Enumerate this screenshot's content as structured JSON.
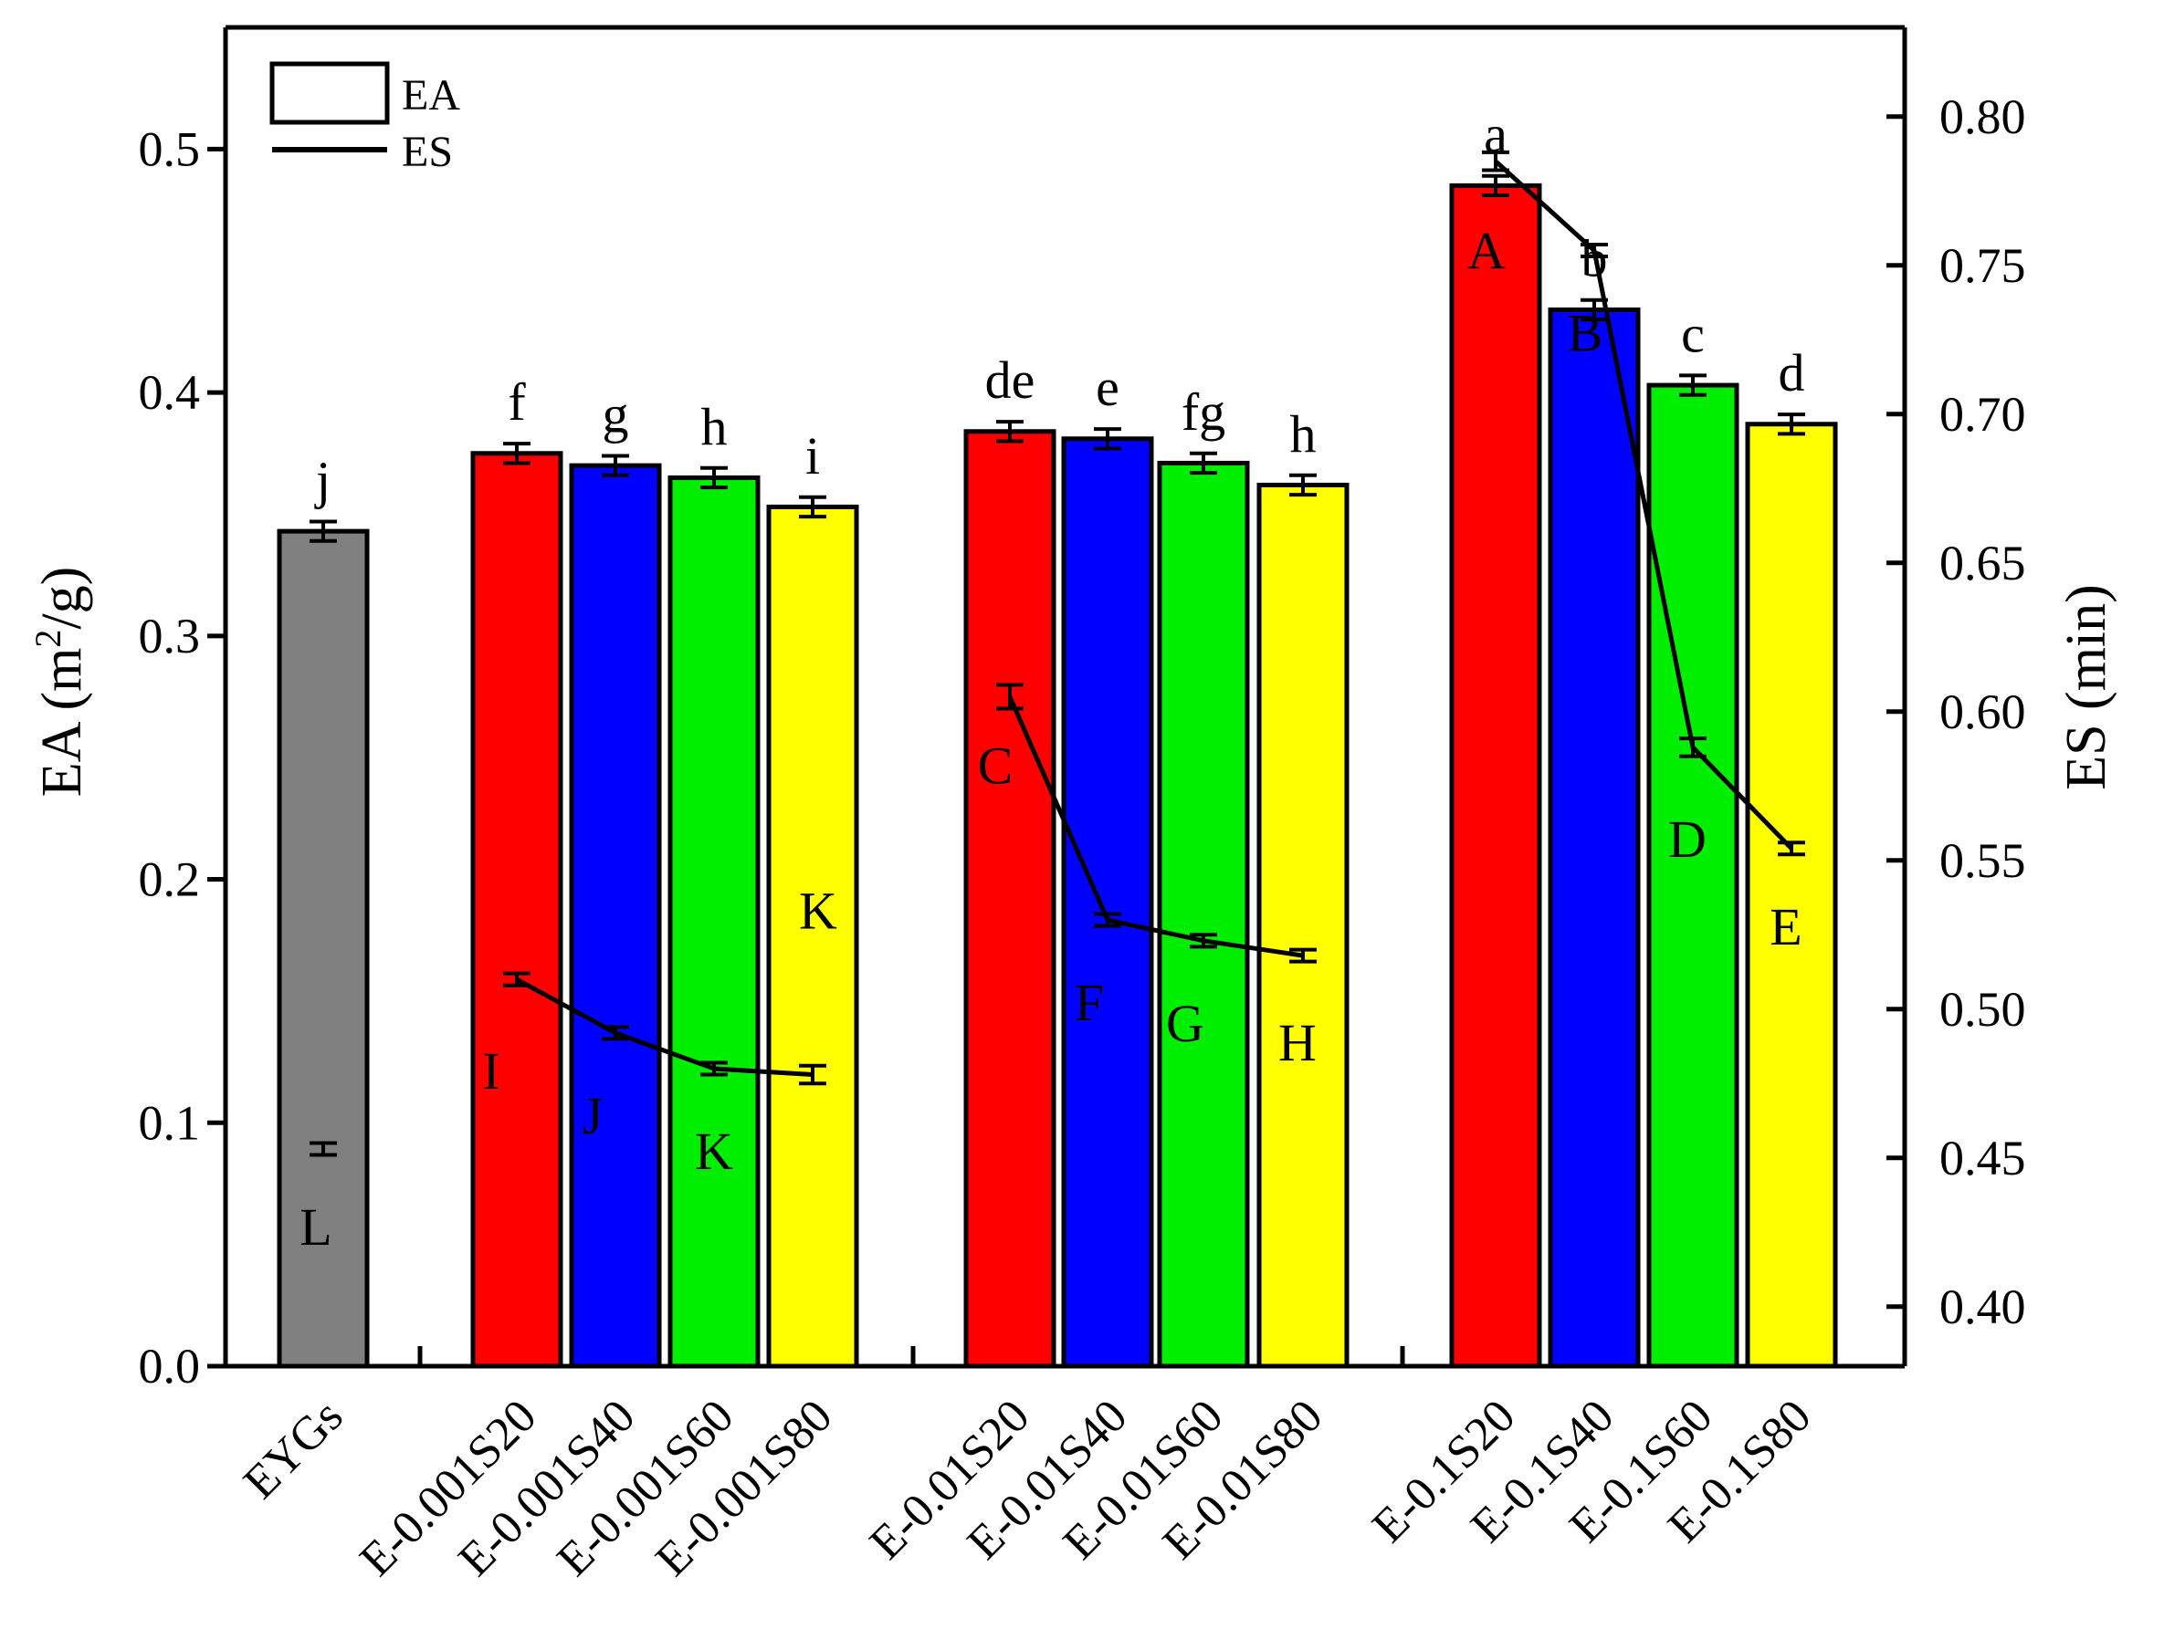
{
  "chart_data": {
    "type": "bar",
    "title": "",
    "categories": [
      "EYGs",
      "E-0.001S20",
      "E-0.001S40",
      "E-0.001S60",
      "E-0.001S80",
      "E-0.01S20",
      "E-0.01S40",
      "E-0.01S60",
      "E-0.01S80",
      "E-0.1S20",
      "E-0.1S40",
      "E-0.1S60",
      "E-0.1S80"
    ],
    "groups": [
      [
        "EYGs"
      ],
      [
        "E-0.001S20",
        "E-0.001S40",
        "E-0.001S60",
        "E-0.001S80"
      ],
      [
        "E-0.01S20",
        "E-0.01S40",
        "E-0.01S60",
        "E-0.01S80"
      ],
      [
        "E-0.1S20",
        "E-0.1S40",
        "E-0.1S60",
        "E-0.1S80"
      ]
    ],
    "bar_colors": [
      "#808080",
      "#ff0000",
      "#0000ff",
      "#00ee00",
      "#ffff00",
      "#ff0000",
      "#0000ff",
      "#00ee00",
      "#ffff00",
      "#ff0000",
      "#0000ff",
      "#00ee00",
      "#ffff00"
    ],
    "legend": {
      "position": "top-left",
      "entries": [
        {
          "label": "EA",
          "style": "bar"
        },
        {
          "label": "ES",
          "style": "line"
        }
      ]
    },
    "left_axis": {
      "label_prefix": "EA (m",
      "label_sup": "2",
      "label_suffix": "/g)",
      "ylim": [
        0,
        0.55
      ],
      "ticks": [
        "0.0",
        "0.1",
        "0.2",
        "0.3",
        "0.4",
        "0.5"
      ]
    },
    "right_axis": {
      "label": "ES (min)",
      "ylim": [
        0.38,
        0.83
      ],
      "ticks": [
        "0.40",
        "0.45",
        "0.50",
        "0.55",
        "0.60",
        "0.65",
        "0.70",
        "0.75",
        "0.80"
      ]
    },
    "series": [
      {
        "name": "EA",
        "axis": "left",
        "style": "bar",
        "values": [
          0.343,
          0.375,
          0.37,
          0.365,
          0.353,
          0.384,
          0.381,
          0.371,
          0.362,
          0.485,
          0.434,
          0.403,
          0.387
        ],
        "errors": [
          0.004,
          0.004,
          0.004,
          0.004,
          0.004,
          0.004,
          0.004,
          0.004,
          0.004,
          0.004,
          0.004,
          0.004,
          0.004
        ],
        "labels": [
          "j",
          "f",
          "g",
          "h",
          "i",
          "de",
          "e",
          "fg",
          "h",
          "a",
          "b",
          "c",
          "d"
        ]
      },
      {
        "name": "ES",
        "axis": "right",
        "style": "line",
        "values": [
          0.453,
          0.51,
          0.492,
          0.48,
          0.478,
          0.605,
          0.53,
          0.523,
          0.518,
          0.785,
          0.755,
          0.588,
          0.554
        ],
        "errors": [
          0.002,
          0.002,
          0.002,
          0.002,
          0.003,
          0.004,
          0.002,
          0.002,
          0.002,
          0.003,
          0.002,
          0.003,
          0.002
        ],
        "labels": [
          "L",
          "I",
          "J",
          "K",
          "K",
          "C",
          "F",
          "G",
          "H",
          "A",
          "B",
          "D",
          "E"
        ],
        "segments": [
          [
            1,
            4
          ],
          [
            5,
            8
          ],
          [
            9,
            12
          ]
        ]
      }
    ]
  }
}
